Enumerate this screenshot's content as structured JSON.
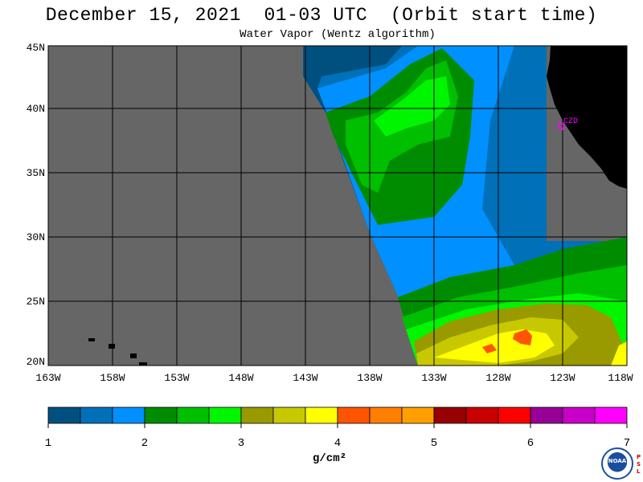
{
  "header": {
    "title": "December 15, 2021  01-03 UTC  (Orbit start time)",
    "subtitle": "Water Vapor (Wentz algorithm)"
  },
  "map": {
    "lat_labels": [
      "45N",
      "40N",
      "35N",
      "30N",
      "25N",
      "20N"
    ],
    "lon_labels": [
      "163W",
      "158W",
      "153W",
      "148W",
      "143W",
      "138W",
      "133W",
      "128W",
      "123W",
      "118W"
    ],
    "station_label": "CZD",
    "colors": {
      "no_data": "#666666",
      "land": "#000000",
      "grid": "#000000",
      "station": "#ff00ff"
    }
  },
  "colorbar": {
    "tick_labels": [
      "1",
      "2",
      "3",
      "4",
      "5",
      "6",
      "7"
    ],
    "units": "g/cm²",
    "colors": [
      "#00507f",
      "#0070b8",
      "#0090ff",
      "#008c00",
      "#00be00",
      "#00f500",
      "#999900",
      "#c8c800",
      "#ffff00",
      "#ff5500",
      "#ff7f00",
      "#ffa000",
      "#960000",
      "#c80000",
      "#ff0000",
      "#960096",
      "#c800c8",
      "#ff00ff"
    ]
  },
  "logo": {
    "text": "NOAA",
    "side_text": [
      "P",
      "S",
      "L"
    ]
  }
}
